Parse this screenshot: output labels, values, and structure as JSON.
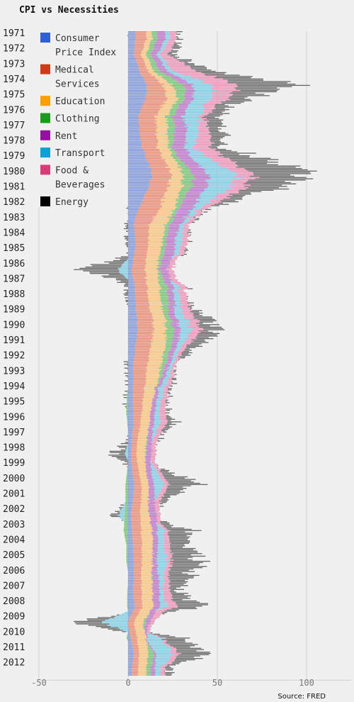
{
  "chart_data": {
    "type": "bar",
    "orientation": "horizontal-stacked",
    "title": "CPI vs Necessities",
    "source": "Source: FRED",
    "xlim": [
      -50,
      125
    ],
    "x_ticks": [
      -50,
      0,
      50,
      100
    ],
    "x_tick_labels": [
      "-50",
      "0",
      "50",
      "100"
    ],
    "grid": "vertical",
    "legend_position": "top-left",
    "categories": [
      "1971",
      "1972",
      "1973",
      "1974",
      "1975",
      "1976",
      "1977",
      "1978",
      "1979",
      "1980",
      "1981",
      "1982",
      "1983",
      "1984",
      "1985",
      "1986",
      "1987",
      "1988",
      "1989",
      "1990",
      "1991",
      "1992",
      "1993",
      "1994",
      "1995",
      "1996",
      "1997",
      "1998",
      "1999",
      "2000",
      "2001",
      "2002",
      "2003",
      "2004",
      "2005",
      "2006",
      "2007",
      "2008",
      "2009",
      "2010",
      "2011",
      "2012"
    ],
    "series": [
      {
        "name": "Consumer Price Index",
        "color": "#7b93d6",
        "values": [
          4.2,
          3.3,
          6.2,
          11.0,
          9.1,
          5.8,
          6.5,
          7.6,
          11.3,
          13.5,
          10.3,
          6.2,
          3.2,
          4.3,
          3.6,
          1.9,
          3.6,
          4.1,
          4.8,
          5.4,
          4.2,
          3.0,
          3.0,
          2.6,
          2.8,
          3.0,
          2.3,
          1.6,
          2.2,
          3.4,
          2.8,
          1.6,
          2.3,
          2.7,
          3.4,
          3.2,
          2.8,
          3.8,
          -0.4,
          1.6,
          3.2,
          2.1
        ]
      },
      {
        "name": "Medical Services",
        "color": "#e8866e",
        "values": [
          6.0,
          4.0,
          4.5,
          9.0,
          12.0,
          10.0,
          9.5,
          8.5,
          9.5,
          11.0,
          10.5,
          12.0,
          9.0,
          7.0,
          7.0,
          7.5,
          7.0,
          7.0,
          8.5,
          9.0,
          8.5,
          8.0,
          7.0,
          6.0,
          5.0,
          4.0,
          3.0,
          3.0,
          3.5,
          4.0,
          4.5,
          5.0,
          5.0,
          5.0,
          4.5,
          4.0,
          5.0,
          4.0,
          3.5,
          3.5,
          3.0,
          3.5
        ]
      },
      {
        "name": "Education",
        "color": "#f8c27a",
        "values": [
          3.0,
          3.0,
          3.0,
          5.0,
          6.0,
          6.0,
          6.0,
          6.0,
          6.0,
          7.0,
          8.0,
          8.0,
          9.0,
          8.0,
          7.0,
          7.0,
          7.0,
          7.0,
          7.0,
          7.0,
          8.0,
          8.0,
          7.0,
          6.0,
          5.0,
          5.0,
          5.0,
          5.0,
          4.0,
          4.0,
          4.0,
          5.0,
          6.0,
          6.0,
          6.0,
          6.0,
          6.0,
          6.0,
          5.0,
          5.0,
          5.0,
          4.5
        ]
      },
      {
        "name": "Clothing",
        "color": "#6fbf6f",
        "values": [
          3.0,
          2.5,
          3.5,
          7.0,
          3.5,
          3.5,
          4.5,
          2.0,
          3.5,
          6.5,
          4.5,
          2.5,
          2.5,
          2.0,
          2.5,
          1.0,
          4.0,
          4.5,
          2.5,
          4.5,
          3.5,
          2.5,
          1.5,
          -0.5,
          -1.0,
          -0.5,
          0.5,
          0.5,
          -0.5,
          -1.5,
          -1.5,
          -2.0,
          -2.5,
          -1.0,
          -1.0,
          0.5,
          -0.5,
          -0.5,
          1.5,
          -1.0,
          3.5,
          2.5
        ]
      },
      {
        "name": "Rent",
        "color": "#b86fc4",
        "values": [
          4.5,
          3.5,
          4.0,
          5.0,
          5.0,
          5.5,
          6.5,
          7.0,
          7.5,
          8.5,
          8.5,
          7.5,
          6.0,
          5.0,
          5.5,
          4.5,
          3.5,
          3.5,
          3.5,
          4.0,
          3.0,
          2.5,
          2.0,
          2.0,
          2.5,
          2.5,
          2.5,
          3.0,
          3.0,
          3.0,
          3.5,
          4.0,
          3.0,
          3.0,
          2.5,
          3.5,
          4.0,
          3.5,
          2.5,
          0.5,
          1.0,
          2.5
        ]
      },
      {
        "name": "Transport",
        "color": "#7ccbe3",
        "values": [
          2.5,
          2.0,
          3.0,
          11.0,
          9.5,
          9.0,
          7.0,
          5.0,
          11.0,
          17.0,
          12.0,
          4.0,
          2.0,
          4.0,
          2.5,
          -6.0,
          3.0,
          3.0,
          5.0,
          6.0,
          2.5,
          2.0,
          2.5,
          3.0,
          2.5,
          3.5,
          1.0,
          -2.0,
          2.5,
          6.0,
          0.5,
          -3.5,
          4.0,
          3.5,
          6.0,
          3.0,
          2.0,
          4.0,
          -14.0,
          8.0,
          10.0,
          3.0
        ]
      },
      {
        "name": "Food & Beverages",
        "color": "#ec8fb4",
        "values": [
          3.5,
          4.5,
          13.0,
          14.0,
          8.5,
          3.0,
          6.0,
          9.5,
          10.5,
          8.5,
          7.5,
          4.0,
          2.5,
          3.5,
          2.5,
          3.0,
          3.5,
          4.0,
          5.5,
          5.5,
          3.0,
          1.5,
          2.0,
          2.5,
          3.0,
          3.5,
          2.5,
          2.5,
          2.0,
          2.5,
          3.0,
          2.0,
          2.0,
          3.5,
          2.5,
          2.5,
          4.0,
          5.5,
          2.0,
          1.0,
          3.5,
          2.5
        ]
      },
      {
        "name": "Energy",
        "color": "#666666",
        "values": [
          2.0,
          2.5,
          9.0,
          31.0,
          11.0,
          7.0,
          7.5,
          6.0,
          25.5,
          30.5,
          13.5,
          1.5,
          -0.5,
          0.5,
          1.0,
          -20.0,
          -0.5,
          1.0,
          5.5,
          8.5,
          6.5,
          0.5,
          1.0,
          -0.5,
          0.5,
          4.5,
          1.5,
          -7.5,
          3.5,
          16.0,
          3.5,
          -6.0,
          12.5,
          10.0,
          17.0,
          11.0,
          5.5,
          13.5,
          -18.5,
          10.0,
          15.5,
          2.0
        ]
      }
    ]
  },
  "legend_items": [
    {
      "label": "Consumer\nPrice Index",
      "color": "#2e60d1"
    },
    {
      "label": "Medical\nServices",
      "color": "#d03b15"
    },
    {
      "label": "Education",
      "color": "#ff9e00"
    },
    {
      "label": "Clothing",
      "color": "#169e16"
    },
    {
      "label": "Rent",
      "color": "#9a0ca6"
    },
    {
      "label": "Transport",
      "color": "#0aa0d8"
    },
    {
      "label": "Food &\nBeverages",
      "color": "#dc3b79"
    },
    {
      "label": "Energy",
      "color": "#000000"
    }
  ]
}
